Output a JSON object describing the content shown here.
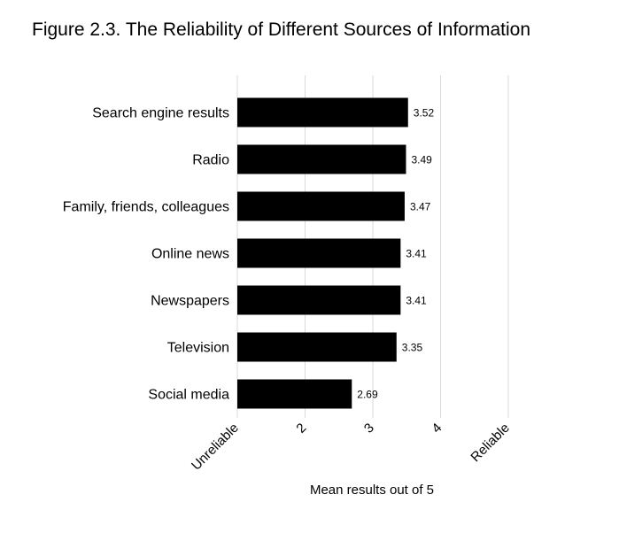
{
  "chart_data": {
    "type": "bar",
    "orientation": "horizontal",
    "title": "Figure 2.3. The Reliability of Different Sources of Information",
    "xlabel": "Mean results out of 5",
    "ylabel": "",
    "categories": [
      "Search engine results",
      "Radio",
      "Family, friends, colleagues",
      "Online news",
      "Newspapers",
      "Television",
      "Social media"
    ],
    "values": [
      3.52,
      3.49,
      3.47,
      3.41,
      3.41,
      3.35,
      2.69
    ],
    "value_labels": [
      "3.52",
      "3.49",
      "3.47",
      "3.41",
      "3.41",
      "3.35",
      "2.69"
    ],
    "xlim": [
      1,
      5
    ],
    "x_ticks": [
      {
        "value": 1,
        "label": "Unreliable"
      },
      {
        "value": 2,
        "label": "2"
      },
      {
        "value": 3,
        "label": "3"
      },
      {
        "value": 4,
        "label": "4"
      },
      {
        "value": 5,
        "label": "Reliable"
      }
    ],
    "grid": true,
    "bar_color": "#000000",
    "grid_color": "#d9d9d9"
  }
}
